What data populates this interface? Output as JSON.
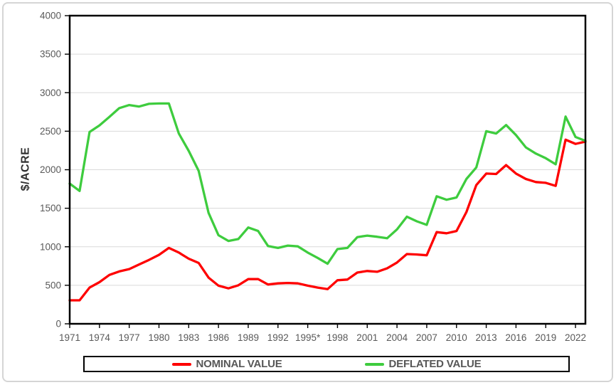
{
  "chart_data": {
    "type": "line",
    "title": "",
    "ylabel": "$/ACRE",
    "xlabel": "",
    "ylim": [
      0,
      4000
    ],
    "yticks": [
      0,
      500,
      1000,
      1500,
      2000,
      2500,
      3000,
      3500,
      4000
    ],
    "xtick_labels": [
      "1971",
      "1974",
      "1977",
      "1980",
      "1983",
      "1986",
      "1989",
      "1992",
      "1995*",
      "1998",
      "2001",
      "2004",
      "2007",
      "2010",
      "2013",
      "2016",
      "2019",
      "2022"
    ],
    "grid": "horizontal",
    "legend_position": "bottom",
    "x": [
      1971,
      1972,
      1973,
      1974,
      1975,
      1976,
      1977,
      1978,
      1979,
      1980,
      1981,
      1982,
      1983,
      1984,
      1985,
      1986,
      1987,
      1988,
      1989,
      1990,
      1991,
      1992,
      1993,
      1994,
      1995,
      1996,
      1997,
      1998,
      1999,
      2000,
      2001,
      2002,
      2003,
      2004,
      2005,
      2006,
      2007,
      2008,
      2009,
      2010,
      2011,
      2012,
      2013,
      2014,
      2015,
      2016,
      2017,
      2018,
      2019,
      2020,
      2021,
      2022,
      2023
    ],
    "series": [
      {
        "name": "NOMINAL VALUE",
        "color": "#fe0000",
        "values": [
          305,
          305,
          470,
          540,
          635,
          680,
          710,
          770,
          830,
          895,
          985,
          925,
          845,
          790,
          600,
          495,
          460,
          500,
          580,
          580,
          510,
          525,
          530,
          525,
          495,
          470,
          450,
          565,
          575,
          665,
          685,
          675,
          720,
          795,
          905,
          900,
          890,
          1190,
          1175,
          1205,
          1450,
          1800,
          1950,
          1945,
          2060,
          1950,
          1880,
          1840,
          1830,
          1790,
          2390,
          2335,
          2365
        ]
      },
      {
        "name": "DEFLATED VALUE",
        "color": "#3ecc3e",
        "values": [
          1820,
          1725,
          2490,
          2575,
          2685,
          2800,
          2840,
          2820,
          2855,
          2860,
          2860,
          2470,
          2245,
          1985,
          1440,
          1150,
          1075,
          1100,
          1250,
          1205,
          1010,
          985,
          1015,
          1005,
          925,
          855,
          780,
          970,
          985,
          1125,
          1145,
          1130,
          1110,
          1225,
          1390,
          1330,
          1285,
          1655,
          1610,
          1640,
          1880,
          2030,
          2500,
          2470,
          2580,
          2450,
          2290,
          2210,
          2150,
          2070,
          2690,
          2425,
          2375
        ]
      }
    ]
  }
}
